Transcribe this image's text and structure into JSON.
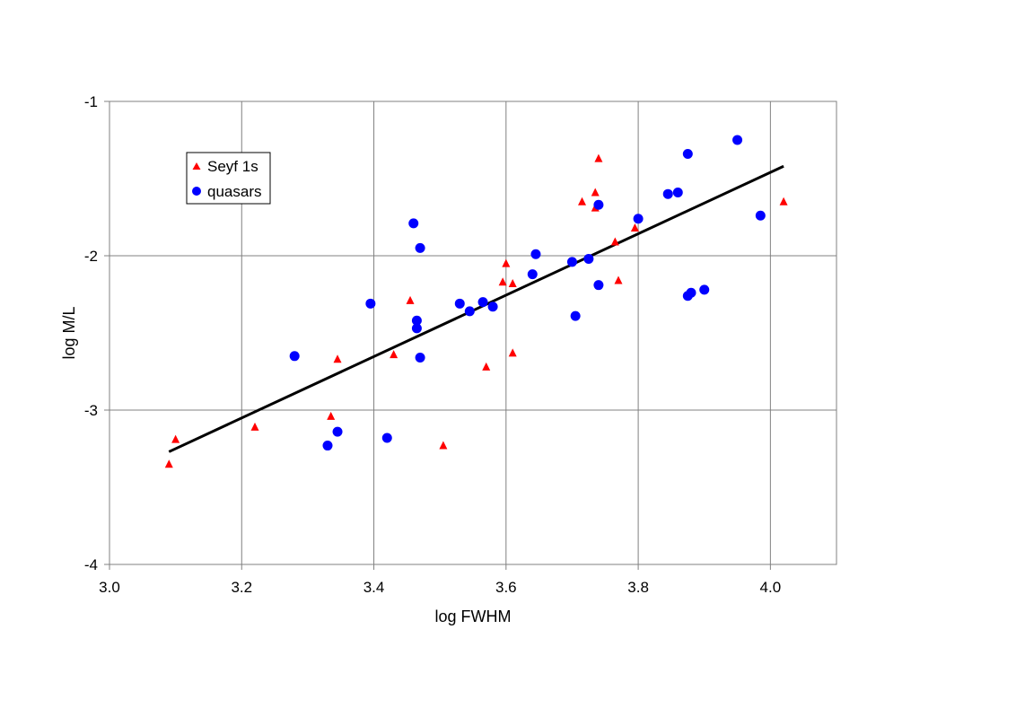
{
  "chart_data": {
    "type": "scatter",
    "title": "",
    "xlabel": "log FWHM",
    "ylabel": "log M/L",
    "xlim": [
      3.0,
      4.1
    ],
    "ylim": [
      -4,
      -1
    ],
    "xticks": [
      "3.0",
      "3.2",
      "3.4",
      "3.6",
      "3.8",
      "4.0"
    ],
    "yticks": [
      "-1",
      "-2",
      "-3",
      "-4"
    ],
    "grid": true,
    "legend_position": "top-left",
    "series": [
      {
        "name": "Seyf 1s",
        "marker": "triangle",
        "color": "#ff0000",
        "x": [
          3.09,
          3.1,
          3.22,
          3.335,
          3.345,
          3.43,
          3.455,
          3.505,
          3.57,
          3.595,
          3.6,
          3.61,
          3.61,
          3.715,
          3.735,
          3.735,
          3.74,
          3.765,
          3.77,
          3.795,
          4.02
        ],
        "y": [
          -3.35,
          -3.19,
          -3.11,
          -3.04,
          -2.67,
          -2.64,
          -2.29,
          -3.23,
          -2.72,
          -2.17,
          -2.05,
          -2.18,
          -2.63,
          -1.65,
          -1.59,
          -1.69,
          -1.37,
          -1.91,
          -2.16,
          -1.82,
          -1.65
        ]
      },
      {
        "name": "quasars",
        "marker": "circle",
        "color": "#0000ff",
        "x": [
          3.28,
          3.33,
          3.345,
          3.395,
          3.42,
          3.46,
          3.465,
          3.465,
          3.47,
          3.47,
          3.53,
          3.545,
          3.565,
          3.58,
          3.64,
          3.645,
          3.7,
          3.705,
          3.725,
          3.74,
          3.74,
          3.8,
          3.845,
          3.86,
          3.875,
          3.875,
          3.88,
          3.9,
          3.95,
          3.985
        ],
        "y": [
          -2.65,
          -3.23,
          -3.14,
          -2.31,
          -3.18,
          -1.79,
          -2.47,
          -2.42,
          -1.95,
          -2.66,
          -2.31,
          -2.36,
          -2.3,
          -2.33,
          -2.12,
          -1.99,
          -2.04,
          -2.39,
          -2.02,
          -1.67,
          -2.19,
          -1.76,
          -1.6,
          -1.59,
          -1.34,
          -2.26,
          -2.24,
          -2.22,
          -1.25,
          -1.74
        ]
      }
    ],
    "fit_line": {
      "x": [
        3.09,
        4.02
      ],
      "y": [
        -3.27,
        -1.42
      ],
      "color": "#000000"
    }
  }
}
